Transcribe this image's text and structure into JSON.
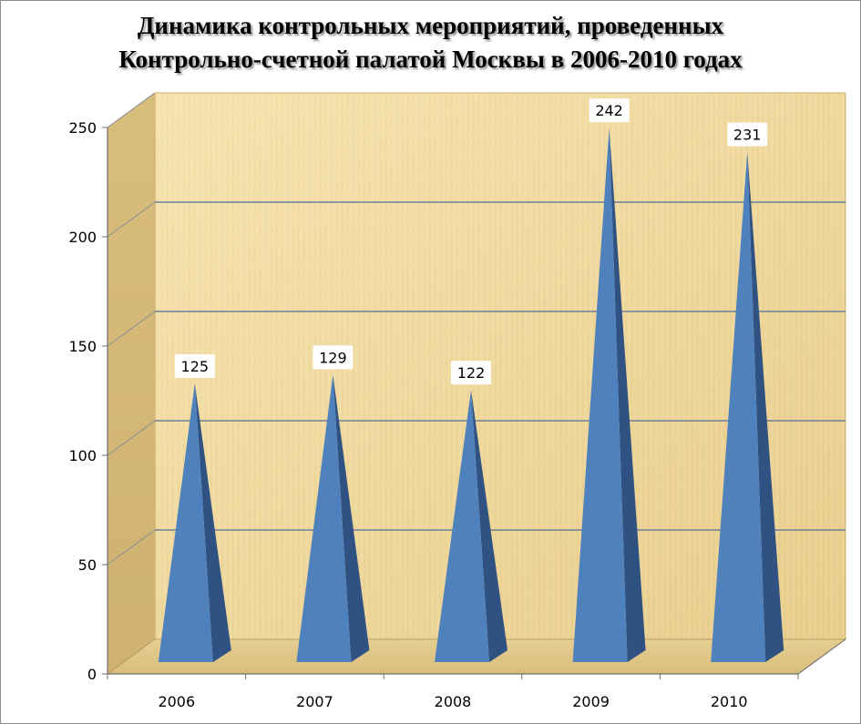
{
  "chart_data": {
    "type": "bar",
    "style": "3d-pyramid",
    "title_lines": [
      "Динамика контрольных мероприятий, проведенных",
      "Контрольно-счетной палатой Москвы в 2006-2010 годах"
    ],
    "categories": [
      "2006",
      "2007",
      "2008",
      "2009",
      "2010"
    ],
    "values": [
      125,
      129,
      122,
      242,
      231
    ],
    "data_labels": [
      "125",
      "129",
      "122",
      "242",
      "231"
    ],
    "y_ticks": [
      "0",
      "50",
      "100",
      "150",
      "200",
      "250"
    ],
    "y_tick_values": [
      0,
      50,
      100,
      150,
      200,
      250
    ],
    "ylim": [
      0,
      250
    ],
    "grid": true,
    "legend": "none",
    "colors": {
      "bar_front": "#4f81bd",
      "bar_side": "#2f5283",
      "wall": "#f2dca0",
      "floor": "#e2c98a",
      "gridline": "#6f7f99"
    }
  }
}
